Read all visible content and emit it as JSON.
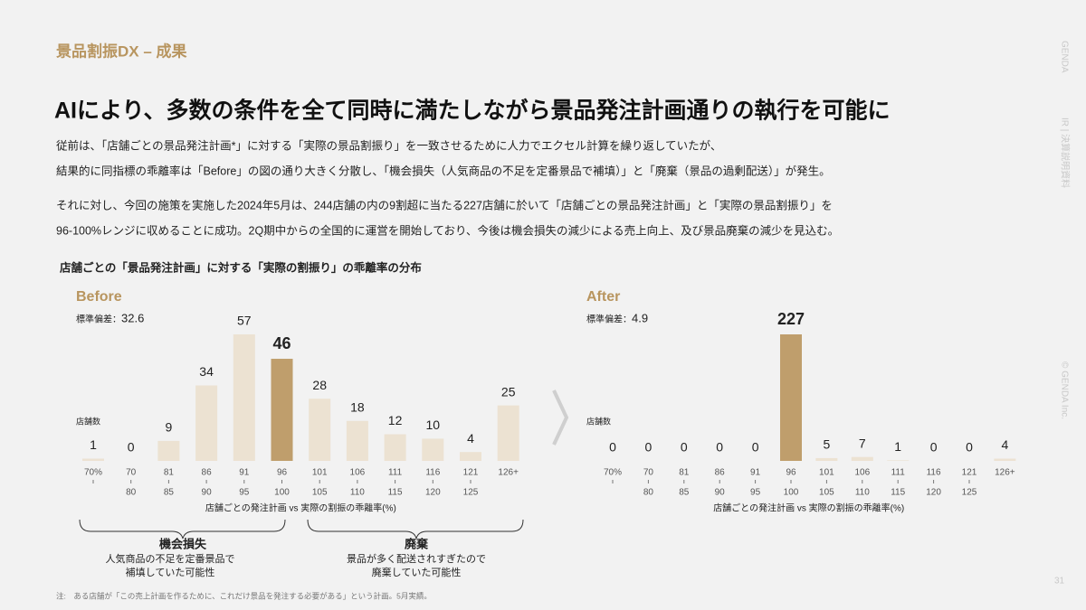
{
  "header": "景品割振DX – 成果",
  "headline": "AIにより、多数の条件を全て同時に満たしながら景品発注計画通りの執行を可能に",
  "body_lines": [
    "従前は、「店舗ごとの景品発注計画*」に対する「実際の景品割振り」を一致させるために人力でエクセル計算を繰り返していたが、",
    "結果的に同指標の乖離率は「Before」の図の通り大きく分散し、「機会損失（人気商品の不足を定番景品で補填）」と「廃棄（景品の過剰配送）」が発生。",
    "それに対し、今回の施策を実施した2024年5月は、244店舗の内の9割超に当たる227店舗に於いて「店舗ごとの景品発注計画」と「実際の景品割振り」を",
    "96-100%レンジに収めることに成功。2Q期中からの全国的に運営を開始しており、今後は機会損失の減少による売上向上、及び景品廃棄の減少を見込む。"
  ],
  "section_title": "店舗ごとの「景品発注計画」に対する「実際の割振り」の乖離率の分布",
  "chart_data": [
    {
      "type": "bar",
      "title": "Before",
      "std_label": "標準偏差：",
      "std_value": 32.6,
      "y_label": "店舗数",
      "categories": [
        "70%",
        "70",
        "81",
        "86",
        "91",
        "96",
        "101",
        "106",
        "111",
        "116",
        "121",
        "126+"
      ],
      "category_ends": [
        null,
        "80",
        "85",
        "90",
        "95",
        "100",
        "105",
        "110",
        "115",
        "120",
        "125",
        null
      ],
      "values": [
        1,
        0,
        9,
        34,
        57,
        46,
        28,
        18,
        12,
        10,
        4,
        25
      ],
      "colors": [
        "#ece2d2",
        "#ece2d2",
        "#ece2d2",
        "#ece2d2",
        "#ece2d2",
        "#bf9e6c",
        "#ece2d2",
        "#ece2d2",
        "#ece2d2",
        "#ece2d2",
        "#ece2d2",
        "#ece2d2"
      ],
      "x_label": "店舗ごとの発注計画 vs 実際の割振の乖離率(%)"
    },
    {
      "type": "bar",
      "title": "After",
      "std_label": "標準偏差：",
      "std_value": 4.9,
      "y_label": "店舗数",
      "categories": [
        "70%",
        "70",
        "81",
        "86",
        "91",
        "96",
        "101",
        "106",
        "111",
        "116",
        "121",
        "126+"
      ],
      "category_ends": [
        null,
        "80",
        "85",
        "90",
        "95",
        "100",
        "105",
        "110",
        "115",
        "120",
        "125",
        null
      ],
      "values": [
        0,
        0,
        0,
        0,
        0,
        227,
        5,
        7,
        1,
        0,
        0,
        4
      ],
      "colors": [
        "#ece2d2",
        "#ece2d2",
        "#ece2d2",
        "#ece2d2",
        "#ece2d2",
        "#bf9e6c",
        "#ece2d2",
        "#ece2d2",
        "#ece2d2",
        "#ece2d2",
        "#ece2d2",
        "#ece2d2"
      ],
      "x_label": "店舗ごとの発注計画 vs 実際の割振の乖離率(%)"
    }
  ],
  "annotations": [
    {
      "title": "機会損失",
      "lines": [
        "人気商品の不足を定番景品で",
        "補填していた可能性"
      ]
    },
    {
      "title": "廃棄",
      "lines": [
        "景品が多く配送されすぎたので",
        "廃棄していた可能性"
      ]
    }
  ],
  "side_labels": [
    "GENDA",
    "IR | 決算説明資料",
    "© GENDA Inc."
  ],
  "page_number": "31",
  "footnote": "注:　ある店舗が「この売上計画を作るために、これだけ景品を発注する必要がある」という計画。5月実績。"
}
